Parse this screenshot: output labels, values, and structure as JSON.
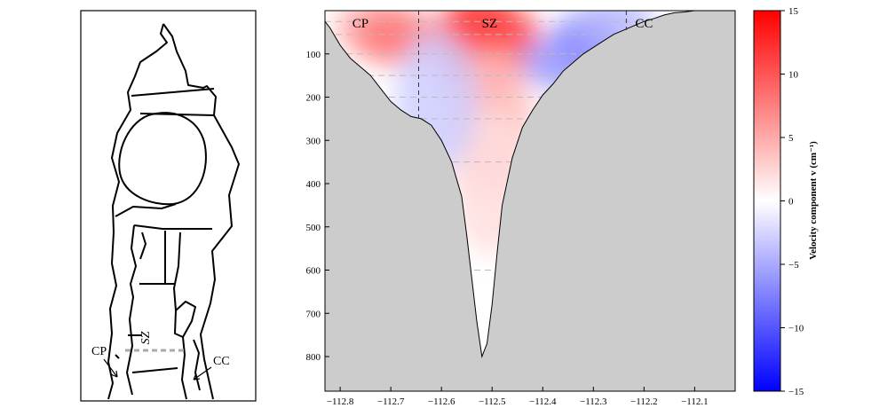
{
  "map": {
    "labels": {
      "zone": "SZ",
      "left": "CP",
      "right": "CC"
    }
  },
  "chart_data": {
    "type": "heatmap",
    "title": "",
    "xlabel": "",
    "ylabel": "",
    "xlim": [
      -112.83,
      -112.02
    ],
    "ylim": [
      880,
      0
    ],
    "y_axis_inverted": true,
    "grid": false,
    "x_ticks": [
      -112.8,
      -112.7,
      -112.6,
      -112.5,
      -112.4,
      -112.3,
      -112.2,
      -112.1
    ],
    "y_ticks": [
      100,
      200,
      300,
      400,
      500,
      600,
      700,
      800
    ],
    "zone_labels": [
      {
        "text": "CP",
        "x": -112.76
      },
      {
        "text": "SZ",
        "x": -112.505
      },
      {
        "text": "CC",
        "x": -112.2
      }
    ],
    "zone_boundaries_x": [
      -112.645,
      -112.235
    ],
    "sample_depths": [
      25,
      55,
      100,
      150,
      200,
      250,
      350,
      600
    ],
    "bathymetry": {
      "x": [
        -112.83,
        -112.82,
        -112.8,
        -112.78,
        -112.76,
        -112.74,
        -112.72,
        -112.7,
        -112.68,
        -112.66,
        -112.64,
        -112.62,
        -112.6,
        -112.58,
        -112.56,
        -112.55,
        -112.54,
        -112.53,
        -112.52,
        -112.51,
        -112.5,
        -112.49,
        -112.48,
        -112.46,
        -112.44,
        -112.42,
        -112.4,
        -112.38,
        -112.36,
        -112.34,
        -112.32,
        -112.3,
        -112.28,
        -112.26,
        -112.24,
        -112.22,
        -112.2,
        -112.18,
        -112.16,
        -112.14,
        -112.12,
        -112.1,
        -112.08,
        -112.06
      ],
      "depth": [
        25,
        40,
        80,
        110,
        130,
        150,
        180,
        210,
        230,
        245,
        250,
        265,
        300,
        350,
        430,
        520,
        620,
        720,
        800,
        770,
        680,
        560,
        450,
        340,
        270,
        230,
        195,
        170,
        140,
        120,
        100,
        85,
        70,
        55,
        45,
        35,
        25,
        18,
        10,
        5,
        3,
        0,
        0,
        0
      ]
    },
    "colorbar": {
      "label": "Velocity component v (cm⁻¹)",
      "range": [
        -15,
        15
      ],
      "ticks": [
        15,
        10,
        5,
        0,
        -5,
        -10,
        -15
      ],
      "colors": {
        "max": "#ff0000",
        "mid": "#ffffff",
        "min": "#0000ff"
      }
    },
    "velocity_regions": [
      {
        "x": -112.52,
        "depth": 20,
        "value": 12
      },
      {
        "x": -112.56,
        "depth": 60,
        "value": 11
      },
      {
        "x": -112.47,
        "depth": 60,
        "value": 11
      },
      {
        "x": -112.52,
        "depth": 140,
        "value": 8
      },
      {
        "x": -112.5,
        "depth": 260,
        "value": 4
      },
      {
        "x": -112.5,
        "depth": 400,
        "value": 2
      },
      {
        "x": -112.73,
        "depth": 40,
        "value": 5
      },
      {
        "x": -112.69,
        "depth": 60,
        "value": 8
      },
      {
        "x": -112.61,
        "depth": 210,
        "value": -3
      },
      {
        "x": -112.31,
        "depth": 70,
        "value": -11
      },
      {
        "x": -112.36,
        "depth": 120,
        "value": -6
      },
      {
        "x": -112.26,
        "depth": 30,
        "value": -4
      }
    ]
  },
  "colors": {
    "land": "#cccccc",
    "frame": "#000000",
    "dashed_grid": "#bbbbbb"
  }
}
